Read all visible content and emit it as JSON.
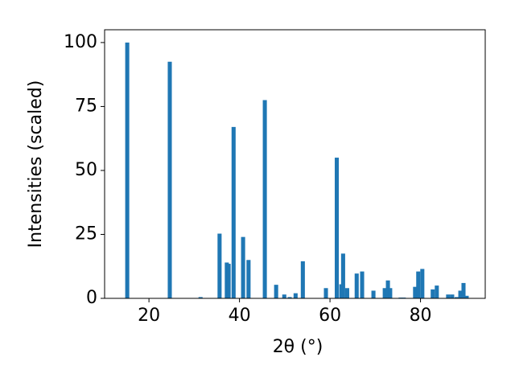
{
  "chart_data": {
    "type": "bar",
    "xlabel": "2θ (°)",
    "ylabel": "Intensities (scaled)",
    "x": [
      15.2,
      24.6,
      31.4,
      35.6,
      37.2,
      37.6,
      38.7,
      40.8,
      42.0,
      45.6,
      48.1,
      49.9,
      51.1,
      52.4,
      54.0,
      59.1,
      61.5,
      62.5,
      62.9,
      63.8,
      65.9,
      67.1,
      69.6,
      72.1,
      72.8,
      73.3,
      75.6,
      76.3,
      78.8,
      79.5,
      80.4,
      82.7,
      83.6,
      86.1,
      87.0,
      88.0,
      88.8,
      89.5,
      90.2
    ],
    "values": [
      100,
      92.5,
      0.5,
      25.3,
      14,
      13.5,
      67,
      24,
      15,
      77.5,
      5.3,
      1.5,
      0.5,
      2,
      14.5,
      4,
      55,
      5.5,
      17.5,
      4,
      9.7,
      10.5,
      3,
      4,
      7,
      4,
      0.3,
      0.3,
      4.5,
      10.5,
      11.5,
      3.5,
      5,
      1.5,
      1.5,
      0.5,
      3,
      6,
      1
    ],
    "color": "#1f77b4",
    "xlim": [
      10.2,
      94.3
    ],
    "xticks": [
      20,
      40,
      60,
      80
    ],
    "ylim": [
      0,
      105
    ],
    "yticks": [
      0,
      25,
      50,
      75,
      100
    ],
    "grid": false
  }
}
